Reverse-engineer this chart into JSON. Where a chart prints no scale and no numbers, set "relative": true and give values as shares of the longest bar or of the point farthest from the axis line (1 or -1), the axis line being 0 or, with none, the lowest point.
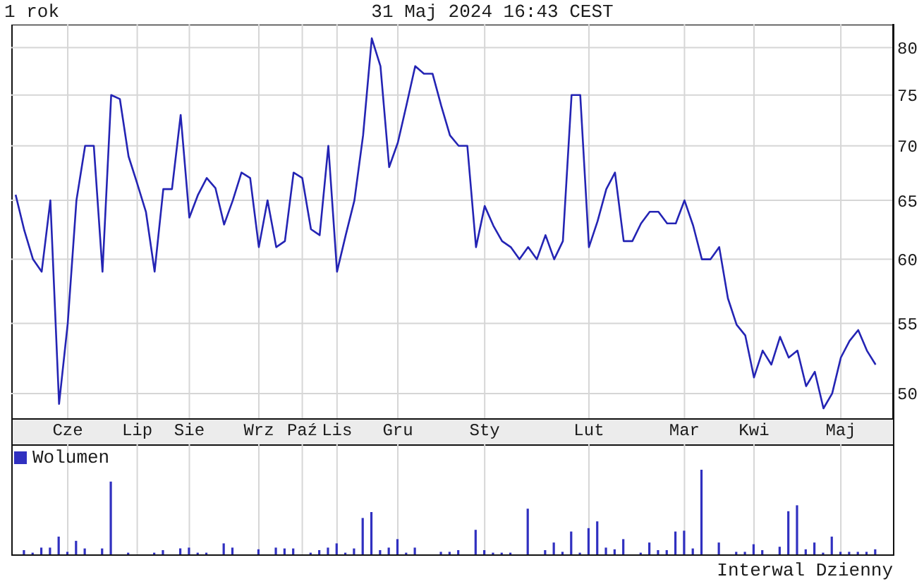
{
  "chart_data": [
    {
      "type": "line",
      "title": "1 rok",
      "subtitle": "31 Maj 2024 16:43 CEST",
      "categories": [
        null,
        null,
        null,
        null,
        null,
        null,
        "Cze",
        null,
        null,
        null,
        null,
        null,
        null,
        null,
        "Lip",
        null,
        null,
        null,
        null,
        null,
        "Sie",
        null,
        null,
        null,
        null,
        null,
        null,
        null,
        "Wrz",
        null,
        null,
        null,
        null,
        "Paź",
        null,
        null,
        null,
        "Lis",
        null,
        null,
        null,
        null,
        null,
        null,
        "Gru",
        null,
        null,
        null,
        null,
        null,
        null,
        null,
        null,
        null,
        "Sty",
        null,
        null,
        null,
        null,
        null,
        null,
        null,
        null,
        null,
        null,
        null,
        "Lut",
        null,
        null,
        null,
        null,
        null,
        null,
        null,
        null,
        null,
        null,
        "Mar",
        null,
        null,
        null,
        null,
        null,
        null,
        null,
        "Kwi",
        null,
        null,
        null,
        null,
        null,
        null,
        null,
        null,
        null,
        "Maj",
        null,
        null,
        null,
        null
      ],
      "values": [
        65.5,
        62.4,
        60.0,
        59.0,
        65.0,
        49.3,
        55.0,
        65.0,
        70.0,
        70.0,
        59.0,
        75.0,
        74.6,
        69.0,
        66.5,
        64.0,
        59.0,
        66.0,
        66.0,
        73.0,
        63.5,
        65.5,
        67.0,
        66.1,
        62.9,
        65.0,
        67.5,
        67.0,
        61.0,
        65.0,
        61.0,
        61.5,
        67.5,
        67.0,
        62.5,
        62.0,
        70.0,
        59.0,
        62.0,
        65.0,
        71.0,
        81.0,
        78.0,
        68.0,
        70.3,
        74.0,
        78.0,
        77.2,
        77.2,
        73.9,
        71.0,
        70.0,
        70.0,
        61.0,
        64.5,
        62.8,
        61.5,
        61.0,
        60.0,
        61.0,
        60.0,
        62.0,
        60.0,
        61.5,
        75.0,
        75.0,
        61.0,
        63.2,
        66.0,
        67.5,
        61.5,
        61.5,
        63.0,
        64.0,
        64.0,
        63.0,
        63.0,
        65.0,
        62.8,
        60.0,
        60.0,
        61.0,
        56.9,
        54.9,
        54.1,
        51.1,
        53.0,
        52.0,
        54.0,
        52.5,
        53.0,
        50.5,
        51.5,
        49.0,
        50.0,
        52.5,
        53.7,
        54.5,
        53.0,
        52.0
      ],
      "color": "#2424b4",
      "ylim": [
        48.3,
        82.6
      ],
      "yticks": [
        50,
        55,
        60,
        65,
        70,
        75,
        80
      ],
      "log": true,
      "grid": true
    },
    {
      "type": "bar",
      "relative": true,
      "tick_labels": false,
      "grid": "x",
      "legend": "top left",
      "annotations": [
        "Interwal Dzienny"
      ],
      "categories": [
        null,
        null,
        null,
        null,
        null,
        null,
        null,
        null,
        null,
        null,
        null,
        null,
        null,
        null,
        null,
        null,
        null,
        null,
        null,
        null,
        null,
        null,
        null,
        null,
        null,
        null,
        null,
        null,
        null,
        null,
        null,
        null,
        null,
        null,
        null,
        null,
        null,
        null,
        null,
        null,
        null,
        null,
        null,
        null,
        null,
        null,
        null,
        null,
        null,
        null,
        null,
        null,
        null,
        null,
        null,
        null,
        null,
        null,
        null,
        null,
        null,
        null,
        null,
        null,
        null,
        null,
        null,
        null,
        null,
        null,
        null,
        null,
        null,
        null,
        null,
        null,
        null,
        null,
        null,
        null,
        null,
        null,
        null,
        null,
        null,
        null,
        null,
        null,
        null,
        null,
        null,
        null,
        null,
        null,
        null,
        null,
        null,
        null,
        null,
        null
      ],
      "series": [
        {
          "name": "Wolumen",
          "color": "#3030c0",
          "values": [
            null,
            0.05,
            0.02,
            0.08,
            0.08,
            0.21,
            0.03,
            0.16,
            0.07,
            null,
            0.07,
            0.86,
            null,
            0.02,
            null,
            null,
            0.02,
            0.05,
            null,
            0.07,
            0.08,
            0.02,
            0.02,
            null,
            0.13,
            0.08,
            null,
            null,
            0.06,
            null,
            0.08,
            0.07,
            0.07,
            null,
            0.02,
            0.05,
            0.08,
            0.13,
            0.02,
            0.07,
            0.43,
            0.5,
            0.05,
            0.08,
            0.18,
            0.02,
            0.08,
            null,
            null,
            0.03,
            0.03,
            0.05,
            null,
            0.29,
            0.05,
            0.02,
            0.02,
            0.02,
            null,
            0.54,
            null,
            0.05,
            0.14,
            0.03,
            0.27,
            0.02,
            0.31,
            0.39,
            0.08,
            0.06,
            0.18,
            null,
            0.02,
            0.14,
            0.05,
            0.05,
            0.27,
            0.28,
            0.07,
            1,
            null,
            0.14,
            null,
            0.03,
            0.03,
            0.12,
            0.05,
            null,
            0.09,
            0.51,
            0.58,
            0.06,
            0.14,
            0.02,
            0.21,
            0.03,
            0.03,
            0.03,
            0.03,
            0.06
          ]
        }
      ]
    }
  ]
}
